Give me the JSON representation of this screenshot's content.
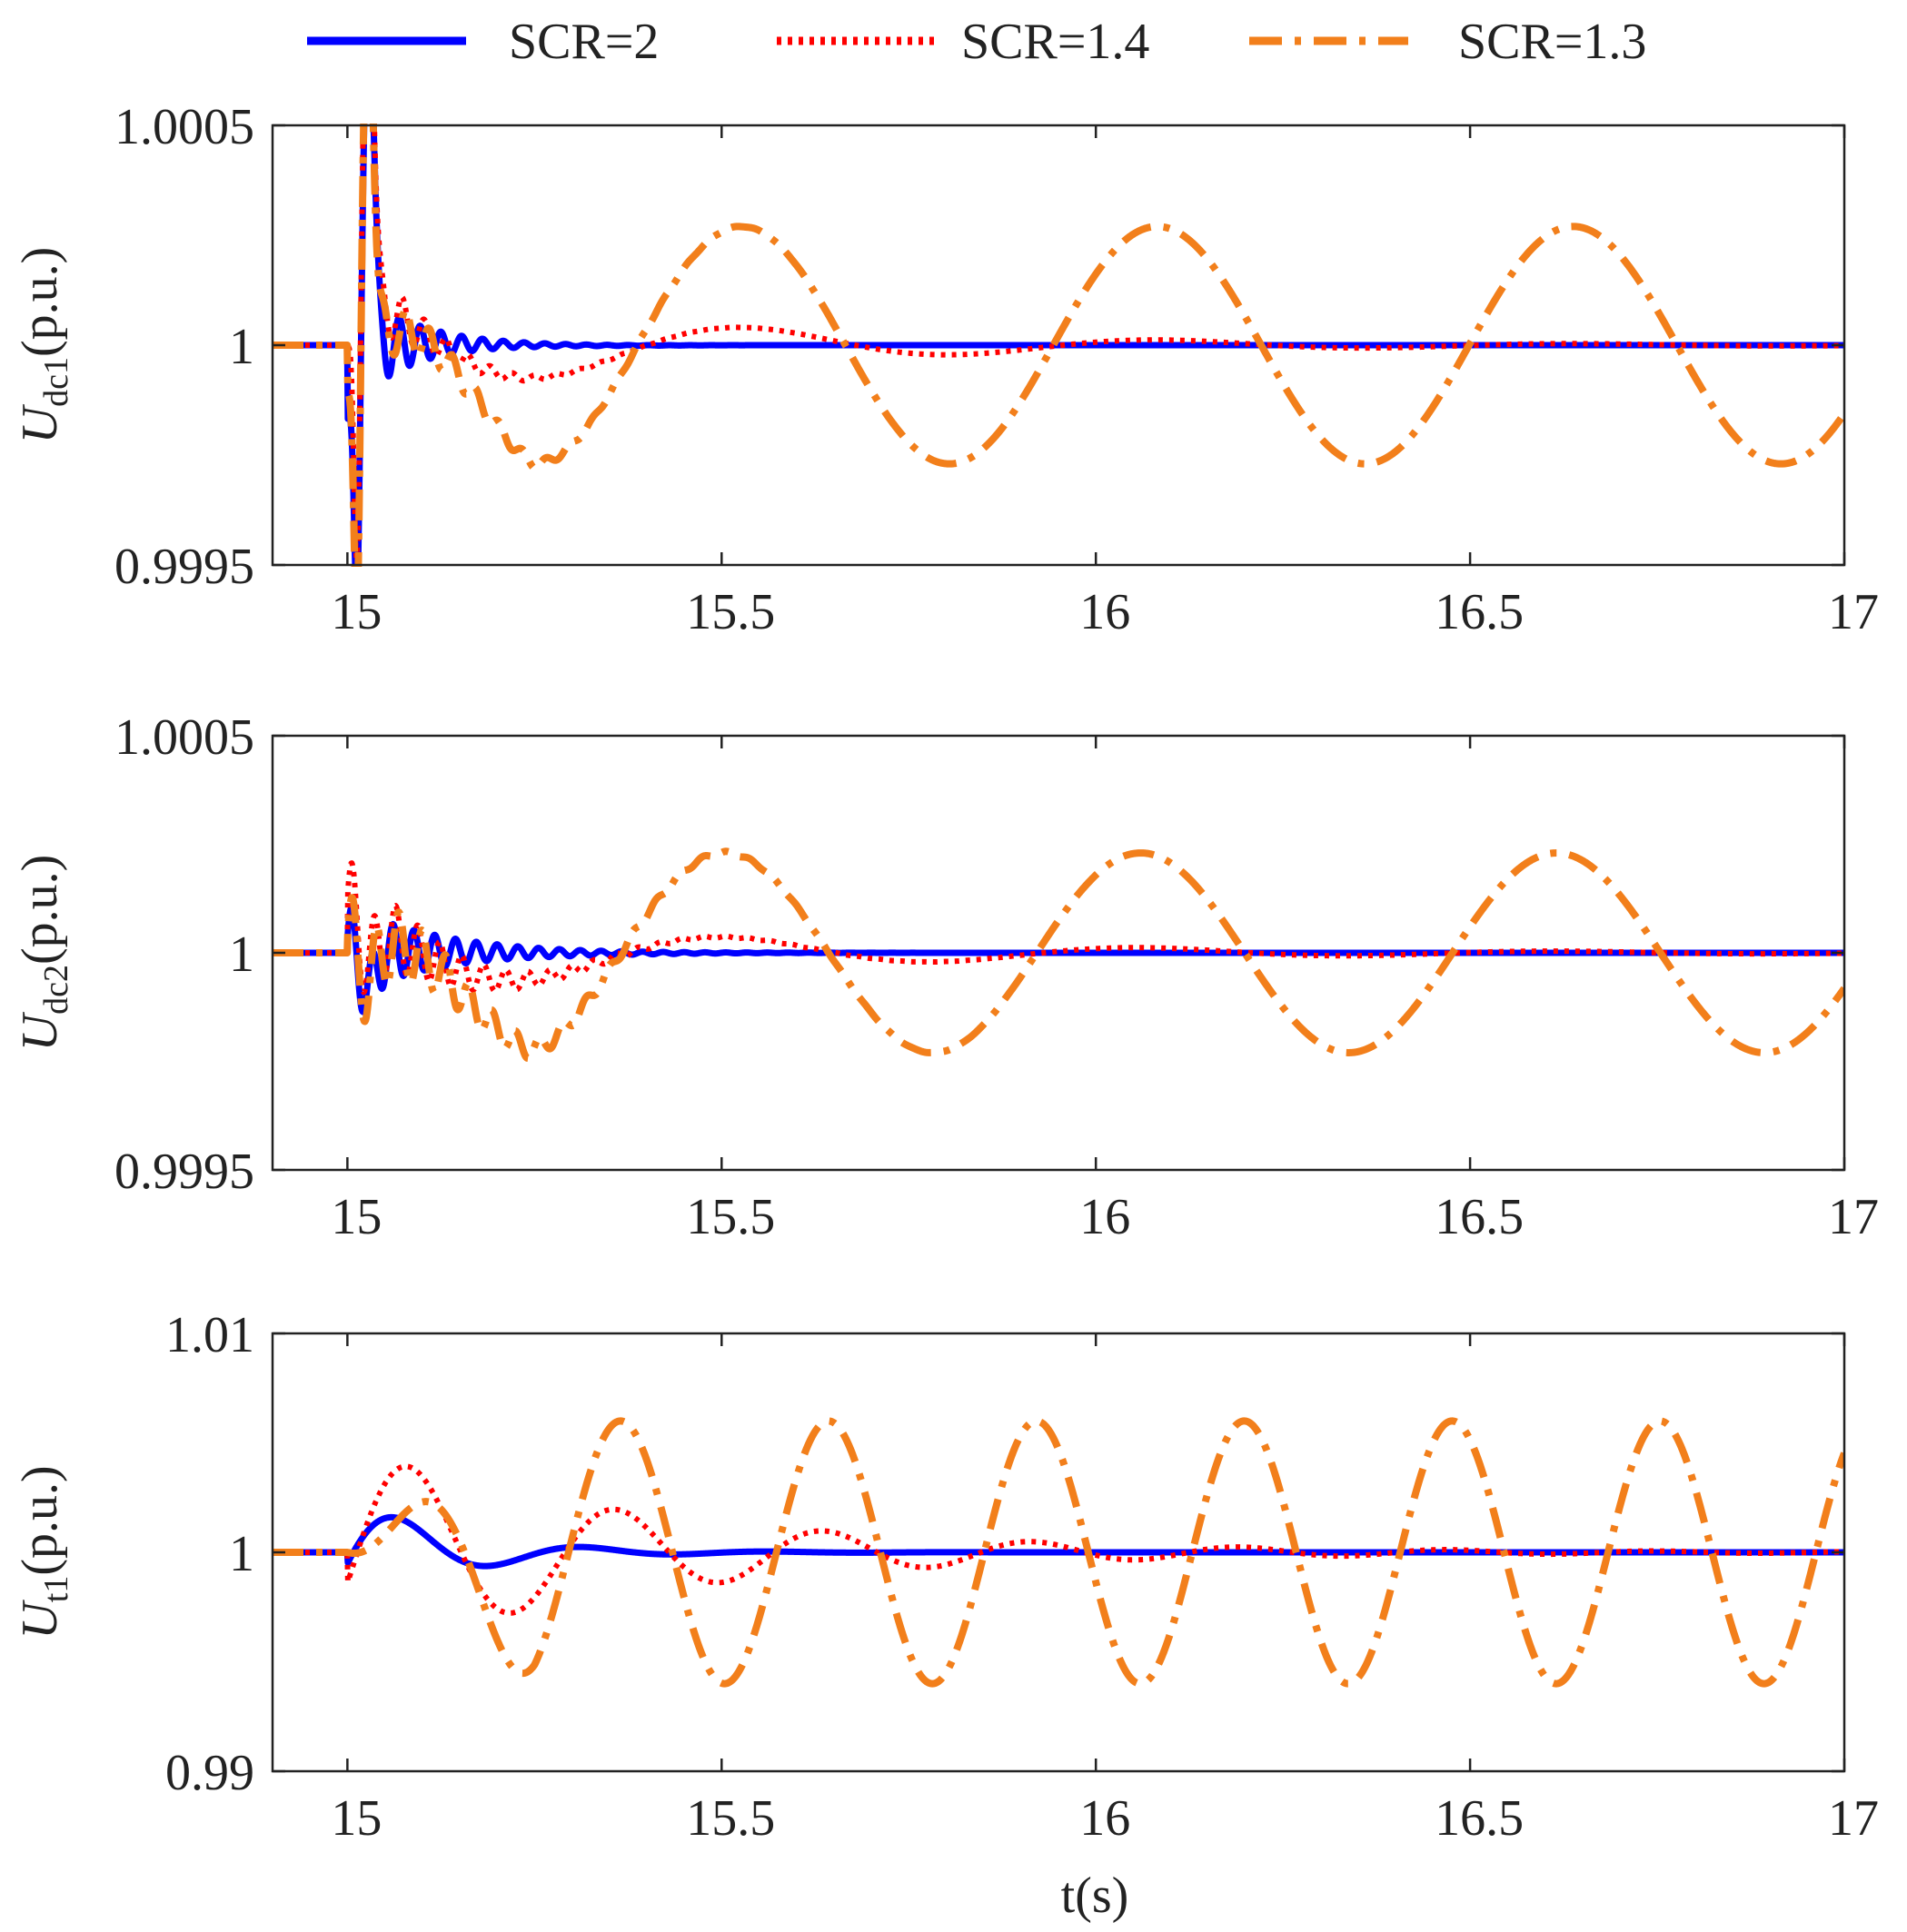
{
  "legend": [
    {
      "label": "SCR=2",
      "color": "#0000ff",
      "style": "solid"
    },
    {
      "label": "SCR=1.4",
      "color": "#ff0000",
      "style": "dotted"
    },
    {
      "label": "SCR=1.3",
      "color": "#f27f1b",
      "style": "dashdot"
    }
  ],
  "chart_data": [
    {
      "type": "line",
      "title": "",
      "ylabel": {
        "symbol": "U",
        "subscript": "dc1",
        "unit": "(p.u.)"
      },
      "xlabel": "",
      "xlim": [
        14.9,
        17.0
      ],
      "ylim": [
        0.9995,
        1.0005
      ],
      "xticks": [
        15,
        15.5,
        16,
        16.5,
        17
      ],
      "xtick_labels": [
        "15",
        "15.5",
        "16",
        "16.5",
        "17"
      ],
      "yticks": [
        0.9995,
        1.0,
        1.0005
      ],
      "ytick_labels": [
        "0.9995",
        "1",
        "1.0005"
      ],
      "series": [
        {
          "name": "SCR=2",
          "baseline": 1.0,
          "onset": 15.0,
          "params": {
            "steady_amp": 0.0,
            "mode_amp": 6e-06,
            "mode_freq": 1.8,
            "mode_decay": 6.0,
            "hf_amp": 0.00016,
            "hf_freq": 36.0,
            "hf_decay": 14.0,
            "hf_phase": -1.57,
            "dip_amp": -0.00075,
            "dip_t": 0.013,
            "dip_w": 0.006,
            "spike_amp": 0.0009,
            "spike_t": 0.028,
            "spike_w": 0.009
          }
        },
        {
          "name": "SCR=1.4",
          "baseline": 1.0,
          "onset": 15.0,
          "params": {
            "steady_amp": 0.0,
            "mode_amp": 0.00013,
            "mode_freq": 1.8,
            "mode_decay": 2.2,
            "mode_phase": 1.75,
            "hf_amp": 0.00012,
            "hf_freq": 34.0,
            "hf_decay": 12.0,
            "hf_phase": -1.57,
            "dip_amp": -0.00075,
            "dip_t": 0.013,
            "dip_w": 0.006,
            "spike_amp": 0.0009,
            "spike_t": 0.028,
            "spike_w": 0.009
          }
        },
        {
          "name": "SCR=1.3",
          "baseline": 1.0,
          "onset": 15.0,
          "params": {
            "steady_amp": 0.00027,
            "mode_amp": 0.0,
            "mode_freq": 1.8,
            "mode_decay": 0.0,
            "mode_phase": 1.9,
            "hf_amp": 0.0001,
            "hf_freq": 32.0,
            "hf_decay": 9.0,
            "hf_phase": -1.57,
            "dip_amp": -0.00075,
            "dip_t": 0.013,
            "dip_w": 0.006,
            "spike_amp": 0.0009,
            "spike_t": 0.028,
            "spike_w": 0.009
          }
        }
      ]
    },
    {
      "type": "line",
      "title": "",
      "ylabel": {
        "symbol": "U",
        "subscript": "dc2",
        "unit": "(p.u.)"
      },
      "xlabel": "",
      "xlim": [
        14.9,
        17.0
      ],
      "ylim": [
        0.9995,
        1.0005
      ],
      "xticks": [
        15,
        15.5,
        16,
        16.5,
        17
      ],
      "xtick_labels": [
        "15",
        "15.5",
        "16",
        "16.5",
        "17"
      ],
      "yticks": [
        0.9995,
        1.0,
        1.0005
      ],
      "ytick_labels": [
        "0.9995",
        "1",
        "1.0005"
      ],
      "series": [
        {
          "name": "SCR=2",
          "baseline": 1.0,
          "onset": 15.0,
          "params": {
            "steady_amp": 0.0,
            "mode_amp": 6e-06,
            "mode_freq": 1.8,
            "mode_decay": 6.0,
            "hf_amp": 0.00011,
            "hf_freq": 36.0,
            "hf_decay": 9.0,
            "hf_phase": 0.3,
            "dip_amp": -9e-05,
            "dip_t": 0.03,
            "dip_w": 0.012,
            "spike_amp": 0.0,
            "spike_t": 0.03,
            "spike_w": 0.01
          }
        },
        {
          "name": "SCR=1.4",
          "baseline": 1.0,
          "onset": 15.0,
          "params": {
            "steady_amp": 0.0,
            "mode_amp": 0.0001,
            "mode_freq": 1.8,
            "mode_decay": 2.0,
            "mode_phase": 2.05,
            "hf_amp": 0.00013,
            "hf_freq": 34.0,
            "hf_decay": 8.0,
            "hf_phase": 0.3,
            "dip_amp": -9e-05,
            "dip_t": 0.03,
            "dip_w": 0.012,
            "spike_amp": 0.0,
            "spike_t": 0.03,
            "spike_w": 0.01
          }
        },
        {
          "name": "SCR=1.3",
          "baseline": 1.0,
          "onset": 15.0,
          "params": {
            "steady_amp": 0.00023,
            "mode_amp": 0.0,
            "mode_freq": 1.8,
            "mode_decay": 0.0,
            "mode_phase": 2.15,
            "hf_amp": 0.00013,
            "hf_freq": 32.0,
            "hf_decay": 7.0,
            "hf_phase": 0.3,
            "dip_amp": -9e-05,
            "dip_t": 0.03,
            "dip_w": 0.012,
            "spike_amp": 0.0,
            "spike_t": 0.03,
            "spike_w": 0.01
          }
        }
      ]
    },
    {
      "type": "line",
      "title": "",
      "ylabel": {
        "symbol": "U",
        "subscript": "t1",
        "unit": "(p.u.)"
      },
      "xlabel": "t(s)",
      "xlim": [
        14.9,
        17.0
      ],
      "ylim": [
        0.99,
        1.01
      ],
      "xticks": [
        15,
        15.5,
        16,
        16.5,
        17
      ],
      "xtick_labels": [
        "15",
        "15.5",
        "16",
        "16.5",
        "17"
      ],
      "yticks": [
        0.99,
        1.0,
        1.01
      ],
      "ytick_labels": [
        "0.99",
        "1",
        "1.01"
      ],
      "series": [
        {
          "name": "SCR=2",
          "baseline": 1.0,
          "onset": 15.0,
          "params": {
            "steady_amp": 0.0,
            "mode_amp": 0.0026,
            "mode_freq": 4.0,
            "mode_decay": 7.5,
            "mode_phase": -0.2,
            "hf_amp": 0.0,
            "hf_freq": 0.0,
            "hf_decay": 0.0,
            "hf_phase": 0.0,
            "dip_amp": 0.0,
            "dip_t": 0.0,
            "dip_w": 0.01,
            "spike_amp": 0.0,
            "spike_t": 0.0,
            "spike_w": 0.01
          }
        },
        {
          "name": "SCR=1.4",
          "baseline": 1.0,
          "onset": 15.0,
          "params": {
            "steady_amp": 0.0,
            "mode_amp": 0.0048,
            "mode_freq": 3.6,
            "mode_decay": 2.5,
            "mode_phase": -0.3,
            "hf_amp": 0.0,
            "hf_freq": 0.0,
            "hf_decay": 0.0,
            "hf_phase": 0.0,
            "dip_amp": 0.0,
            "dip_t": 0.0,
            "dip_w": 0.01,
            "spike_amp": 0.0,
            "spike_t": 0.0,
            "spike_w": 0.01
          }
        },
        {
          "name": "SCR=1.3",
          "baseline": 1.0,
          "onset": 15.0,
          "params": {
            "steady_amp": 0.006,
            "mode_amp": 0.0,
            "mode_freq": 3.6,
            "mode_decay": 0.0,
            "mode_phase": -0.4,
            "hf_amp": 0.0,
            "hf_freq": 0.0,
            "hf_decay": 0.0,
            "hf_phase": 0.0,
            "dip_amp": 0.0,
            "dip_t": 0.0,
            "dip_w": 0.01,
            "spike_amp": 0.0,
            "spike_t": 0.0,
            "spike_w": 0.01
          }
        }
      ]
    }
  ]
}
